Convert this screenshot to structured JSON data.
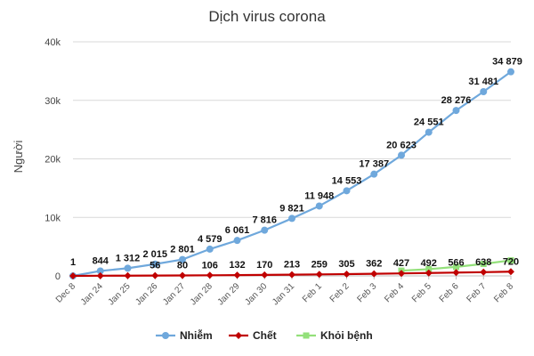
{
  "chart_data": {
    "type": "line",
    "title": "Dịch virus corona",
    "ylabel": "Người",
    "xlabel": "",
    "categories": [
      "Dec 8",
      "Jan 24",
      "Jan 25",
      "Jan 26",
      "Jan 27",
      "Jan 28",
      "Jan 29",
      "Jan 30",
      "Jan 31",
      "Feb 1",
      "Feb 2",
      "Feb 3",
      "Feb 4",
      "Feb 5",
      "Feb 6",
      "Feb 7",
      "Feb 8"
    ],
    "ylim": [
      0,
      40000
    ],
    "yticks": [
      0,
      10000,
      20000,
      30000,
      40000
    ],
    "ytick_labels": [
      "0",
      "10k",
      "20k",
      "30k",
      "40k"
    ],
    "grid": true,
    "legend_position": "bottom",
    "series": [
      {
        "name": "Nhiễm",
        "color": "#6fa8dc",
        "marker": "circle",
        "values": [
          1,
          844,
          1312,
          2015,
          2801,
          4579,
          6061,
          7816,
          9821,
          11948,
          14553,
          17387,
          20623,
          24551,
          28276,
          31481,
          34879
        ],
        "labels": [
          "1",
          "844",
          "1 312",
          "2 015",
          "2 801",
          "4 579",
          "6 061",
          "7 816",
          "9 821",
          "11 948",
          "14 553",
          "17 387",
          "20 623",
          "24 551",
          "28 276",
          "31 481",
          "34 879"
        ]
      },
      {
        "name": "Chết",
        "color": "#c00000",
        "marker": "diamond",
        "values": [
          0,
          25,
          41,
          56,
          80,
          106,
          132,
          170,
          213,
          259,
          305,
          362,
          427,
          492,
          566,
          638,
          720
        ],
        "labels": [
          "",
          "",
          "",
          "56",
          "80",
          "106",
          "132",
          "170",
          "213",
          "259",
          "305",
          "362",
          "427",
          "492",
          "566",
          "638",
          "720"
        ]
      },
      {
        "name": "Khỏi bệnh",
        "color": "#93e07a",
        "marker": "square",
        "offset": 12,
        "values": [
          null,
          null,
          null,
          null,
          null,
          null,
          null,
          null,
          null,
          null,
          null,
          null,
          892,
          1153,
          1540,
          2050,
          2649
        ],
        "labels": []
      }
    ]
  }
}
